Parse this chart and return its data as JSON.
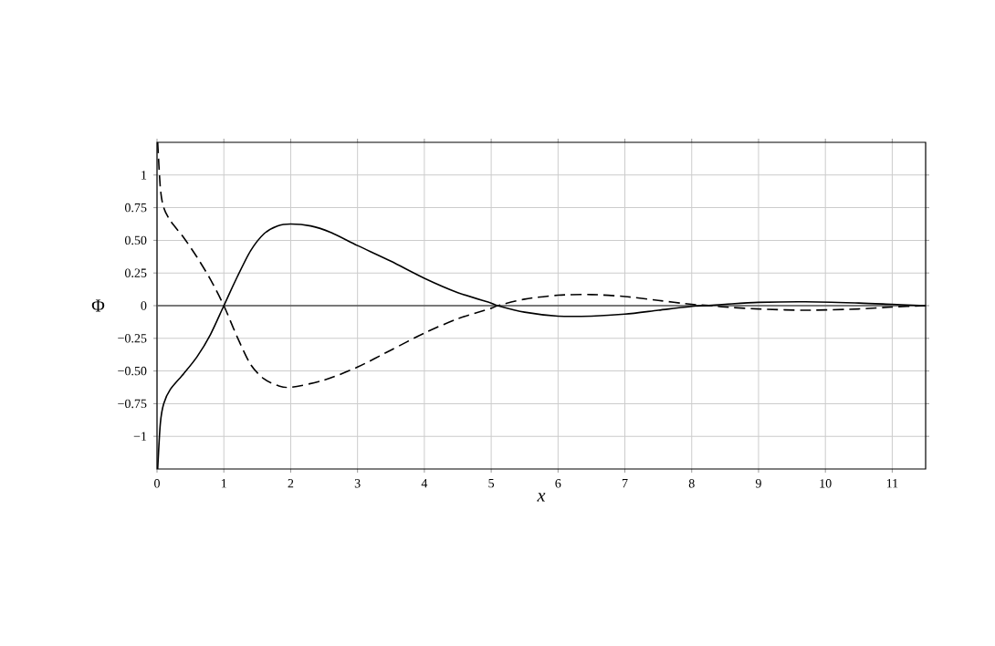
{
  "chart_data": {
    "type": "line",
    "xlabel": "x",
    "ylabel": "Φ",
    "xlim": [
      0,
      11.5
    ],
    "ylim": [
      -1.25,
      1.25
    ],
    "xticks": [
      0,
      1,
      2,
      3,
      4,
      5,
      6,
      7,
      8,
      9,
      10,
      11
    ],
    "yticks": [
      {
        "value": -1,
        "label": "−1"
      },
      {
        "value": -0.75,
        "label": "−0.75"
      },
      {
        "value": -0.5,
        "label": "−0.50"
      },
      {
        "value": -0.25,
        "label": "−0.25"
      },
      0,
      0.25,
      {
        "value": 0.5,
        "label": "0.50"
      },
      0.75,
      1
    ],
    "grid": true,
    "ref_lines": [
      {
        "axis": "y",
        "value": 0,
        "color": "#555555"
      }
    ],
    "series": [
      {
        "color": "#000000",
        "line_style": "solid",
        "x": [
          0.01,
          0.05,
          0.1,
          0.2,
          0.4,
          0.6,
          0.8,
          1,
          1.2,
          1.4,
          1.6,
          1.8,
          2,
          2.3,
          2.6,
          3,
          3.5,
          4,
          4.5,
          5,
          5.1,
          5.5,
          6,
          6.5,
          7,
          7.5,
          8,
          8.2,
          8.5,
          9,
          9.7,
          10.5,
          11,
          11.5
        ],
        "values": [
          -1.25,
          -0.9,
          -0.75,
          -0.64,
          -0.52,
          -0.39,
          -0.22,
          0,
          0.22,
          0.42,
          0.55,
          0.61,
          0.625,
          0.61,
          0.56,
          0.46,
          0.34,
          0.21,
          0.1,
          0.02,
          0,
          -0.05,
          -0.08,
          -0.08,
          -0.065,
          -0.035,
          -0.005,
          0,
          0.01,
          0.025,
          0.03,
          0.02,
          0.01,
          0
        ]
      },
      {
        "color": "#000000",
        "line_style": "dashed",
        "x": [
          0.01,
          0.05,
          0.1,
          0.2,
          0.4,
          0.6,
          0.8,
          1,
          1.2,
          1.4,
          1.6,
          1.8,
          2,
          2.5,
          3,
          3.5,
          4,
          4.5,
          5,
          5.1,
          5.5,
          6,
          6.5,
          7,
          7.5,
          8,
          8.3,
          8.5,
          9,
          9.7,
          10.5,
          11,
          11.5
        ],
        "values": [
          1.25,
          0.9,
          0.75,
          0.65,
          0.52,
          0.37,
          0.2,
          0,
          -0.24,
          -0.45,
          -0.56,
          -0.61,
          -0.625,
          -0.57,
          -0.47,
          -0.34,
          -0.21,
          -0.1,
          -0.02,
          0,
          0.05,
          0.08,
          0.085,
          0.07,
          0.04,
          0.01,
          0,
          -0.01,
          -0.025,
          -0.035,
          -0.025,
          -0.01,
          0
        ]
      }
    ]
  }
}
